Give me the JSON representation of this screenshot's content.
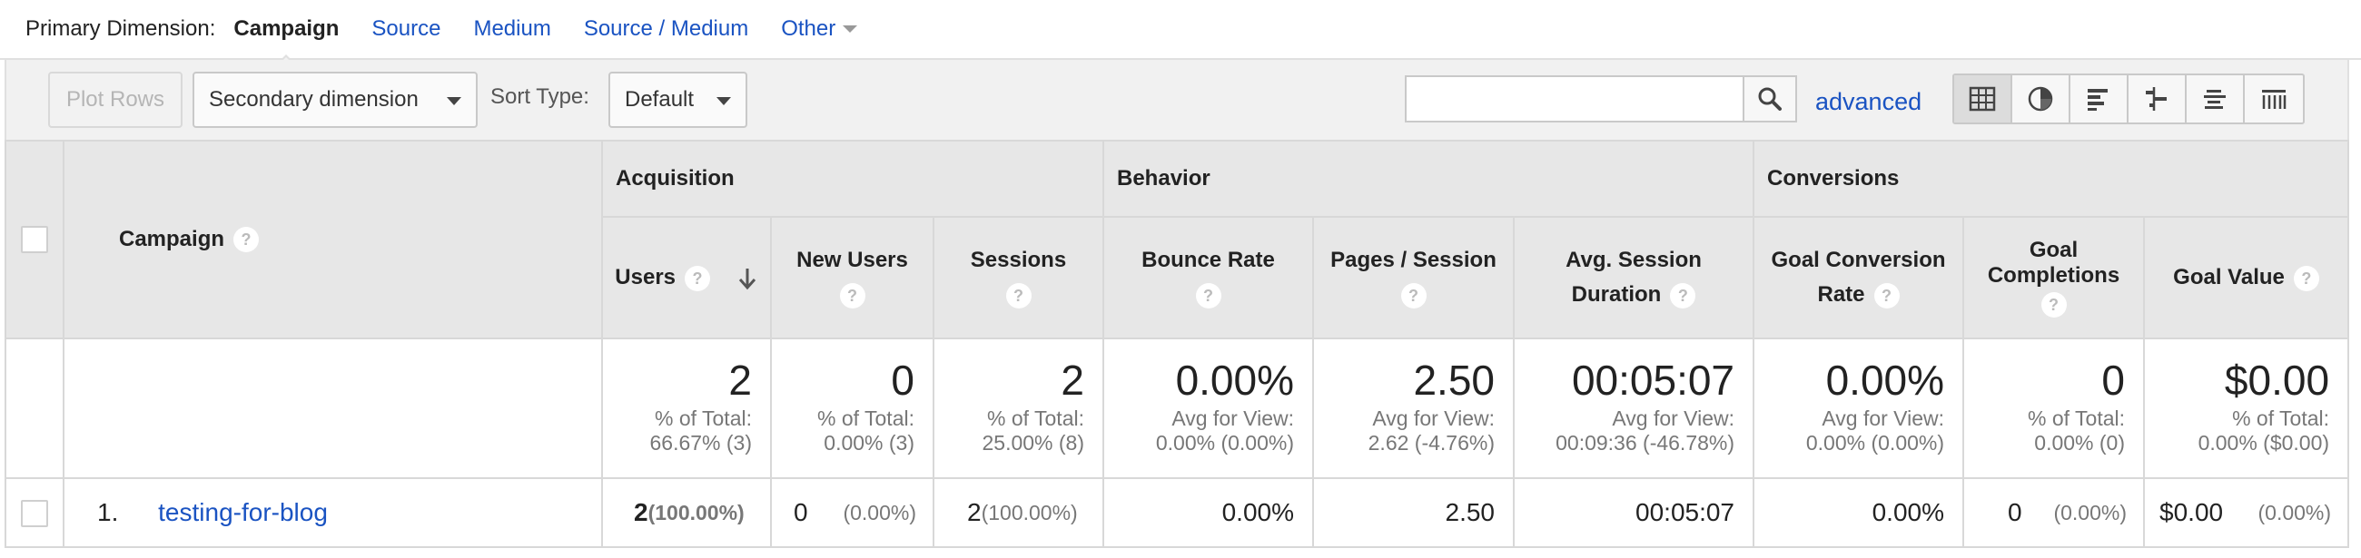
{
  "dimension_bar": {
    "label": "Primary Dimension:",
    "active": "Campaign",
    "links": [
      "Source",
      "Medium",
      "Source / Medium"
    ],
    "other": "Other"
  },
  "toolbar": {
    "plot_rows": "Plot Rows",
    "secondary_dimension": "Secondary dimension",
    "sort_type_label": "Sort Type:",
    "sort_type_value": "Default",
    "search_value": "",
    "advanced": "advanced",
    "view_icons": [
      "table-view-icon",
      "pie-chart-icon",
      "bar-chart-icon",
      "comparison-icon",
      "term-cloud-icon",
      "pivot-icon"
    ],
    "selected_view": "table-view-icon"
  },
  "table": {
    "groups": [
      "Acquisition",
      "Behavior",
      "Conversions"
    ],
    "campaign_header": "Campaign",
    "columns": [
      {
        "label": "Users"
      },
      {
        "label": "New Users"
      },
      {
        "label": "Sessions"
      },
      {
        "label": "Bounce Rate"
      },
      {
        "label": "Pages / Session"
      },
      {
        "label_1": "Avg. Session",
        "label_2": "Duration"
      },
      {
        "label_1": "Goal Conversion",
        "label_2": "Rate"
      },
      {
        "label_1": "Goal",
        "label_2": "Completions"
      },
      {
        "label": "Goal Value"
      }
    ],
    "totals": [
      {
        "value": "2",
        "line1": "% of Total:",
        "line2": "66.67% (3)"
      },
      {
        "value": "0",
        "line1": "% of Total:",
        "line2": "0.00% (3)"
      },
      {
        "value": "2",
        "line1": "% of Total:",
        "line2": "25.00% (8)"
      },
      {
        "value": "0.00%",
        "line1": "Avg for View:",
        "line2": "0.00% (0.00%)"
      },
      {
        "value": "2.50",
        "line1": "Avg for View:",
        "line2": "2.62 (-4.76%)"
      },
      {
        "value": "00:05:07",
        "line1": "Avg for View:",
        "line2": "00:09:36 (-46.78%)"
      },
      {
        "value": "0.00%",
        "line1": "Avg for View:",
        "line2": "0.00% (0.00%)"
      },
      {
        "value": "0",
        "line1": "% of Total:",
        "line2": "0.00% (0)"
      },
      {
        "value": "$0.00",
        "line1": "% of Total:",
        "line2": "0.00% ($0.00)"
      }
    ],
    "rows": [
      {
        "index": "1.",
        "campaign": "testing-for-blog",
        "users": "2",
        "users_pct": "(100.00%)",
        "new_users": "0",
        "new_users_pct": "(0.00%)",
        "sessions": "2",
        "sessions_pct": "(100.00%)",
        "bounce_rate": "0.00%",
        "pages_session": "2.50",
        "avg_duration": "00:05:07",
        "goal_conv_rate": "0.00%",
        "goal_completions": "0",
        "goal_completions_pct": "(0.00%)",
        "goal_value": "$0.00",
        "goal_value_pct": "(0.00%)"
      }
    ]
  },
  "colors": {
    "link": "#1a53c2",
    "header_bg": "#e7e7e7",
    "toolbar_bg": "#f1f1f1",
    "border": "#d8d8d8"
  }
}
